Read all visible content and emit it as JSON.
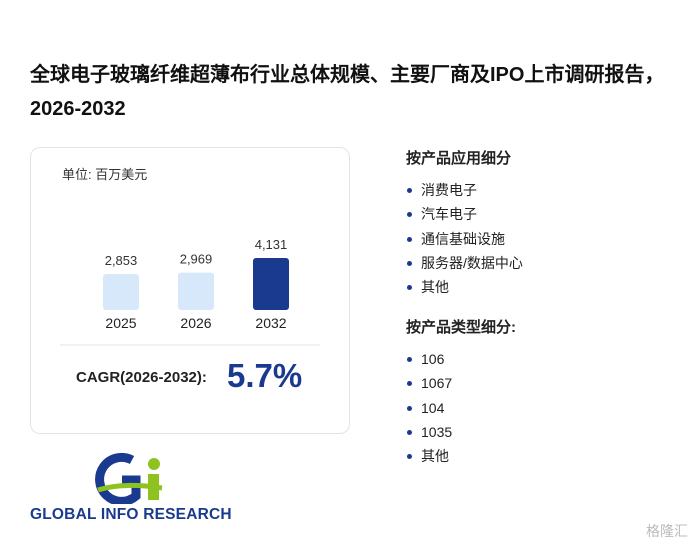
{
  "header": {
    "title": "全球电子玻璃纤维超薄布行业总体规模、主要厂商及IPO上市调研报告，2026-2032"
  },
  "chart_data": {
    "type": "bar",
    "unit": "单位: 百万美元",
    "categories": [
      "2025",
      "2026",
      "2032"
    ],
    "values": [
      2853,
      2969,
      4131
    ],
    "value_labels": [
      "2,853",
      "2,969",
      "4,131"
    ],
    "colors": [
      "#d6e8fa",
      "#d6e8fa",
      "#1a3a8f"
    ]
  },
  "cagr": {
    "label": "CAGR(2026-2032):",
    "value": "5.7%"
  },
  "segments": [
    {
      "title": "按产品应用细分",
      "items": [
        "消费电子",
        "汽车电子",
        "通信基础设施",
        "服务器/数据中心",
        "其他"
      ]
    },
    {
      "title": "按产品类型细分:",
      "items": [
        "106",
        "1067",
        "104",
        "1035",
        "其他"
      ]
    }
  ],
  "logo": "GLOBAL INFO RESEARCH",
  "watermark": "格隆汇"
}
